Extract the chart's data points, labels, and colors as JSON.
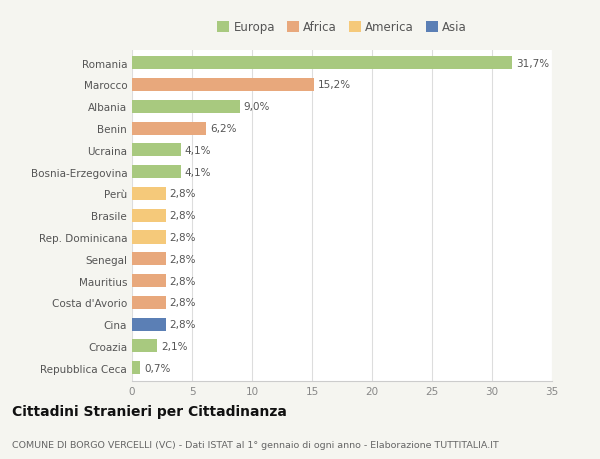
{
  "categories": [
    "Repubblica Ceca",
    "Croazia",
    "Cina",
    "Costa d'Avorio",
    "Mauritius",
    "Senegal",
    "Rep. Dominicana",
    "Brasile",
    "Perù",
    "Bosnia-Erzegovina",
    "Ucraina",
    "Benin",
    "Albania",
    "Marocco",
    "Romania"
  ],
  "values": [
    0.7,
    2.1,
    2.8,
    2.8,
    2.8,
    2.8,
    2.8,
    2.8,
    2.8,
    4.1,
    4.1,
    6.2,
    9.0,
    15.2,
    31.7
  ],
  "labels": [
    "0,7%",
    "2,1%",
    "2,8%",
    "2,8%",
    "2,8%",
    "2,8%",
    "2,8%",
    "2,8%",
    "2,8%",
    "4,1%",
    "4,1%",
    "6,2%",
    "9,0%",
    "15,2%",
    "31,7%"
  ],
  "colors": [
    "#a8c97f",
    "#a8c97f",
    "#5b7fb5",
    "#e8a87c",
    "#e8a87c",
    "#e8a87c",
    "#f5c97a",
    "#f5c97a",
    "#f5c97a",
    "#a8c97f",
    "#a8c97f",
    "#e8a87c",
    "#a8c97f",
    "#e8a87c",
    "#a8c97f"
  ],
  "legend_labels": [
    "Europa",
    "Africa",
    "America",
    "Asia"
  ],
  "legend_colors": [
    "#a8c97f",
    "#e8a87c",
    "#f5c97a",
    "#5b7fb5"
  ],
  "xlim": [
    0,
    35
  ],
  "xticks": [
    0,
    5,
    10,
    15,
    20,
    25,
    30,
    35
  ],
  "title": "Cittadini Stranieri per Cittadinanza",
  "subtitle": "COMUNE DI BORGO VERCELLI (VC) - Dati ISTAT al 1° gennaio di ogni anno - Elaborazione TUTTITALIA.IT",
  "bg_color": "#f5f5f0",
  "plot_bg_color": "#ffffff",
  "bar_height": 0.6,
  "label_fontsize": 7.5,
  "tick_fontsize": 7.5,
  "title_fontsize": 10,
  "subtitle_fontsize": 6.8,
  "legend_fontsize": 8.5
}
